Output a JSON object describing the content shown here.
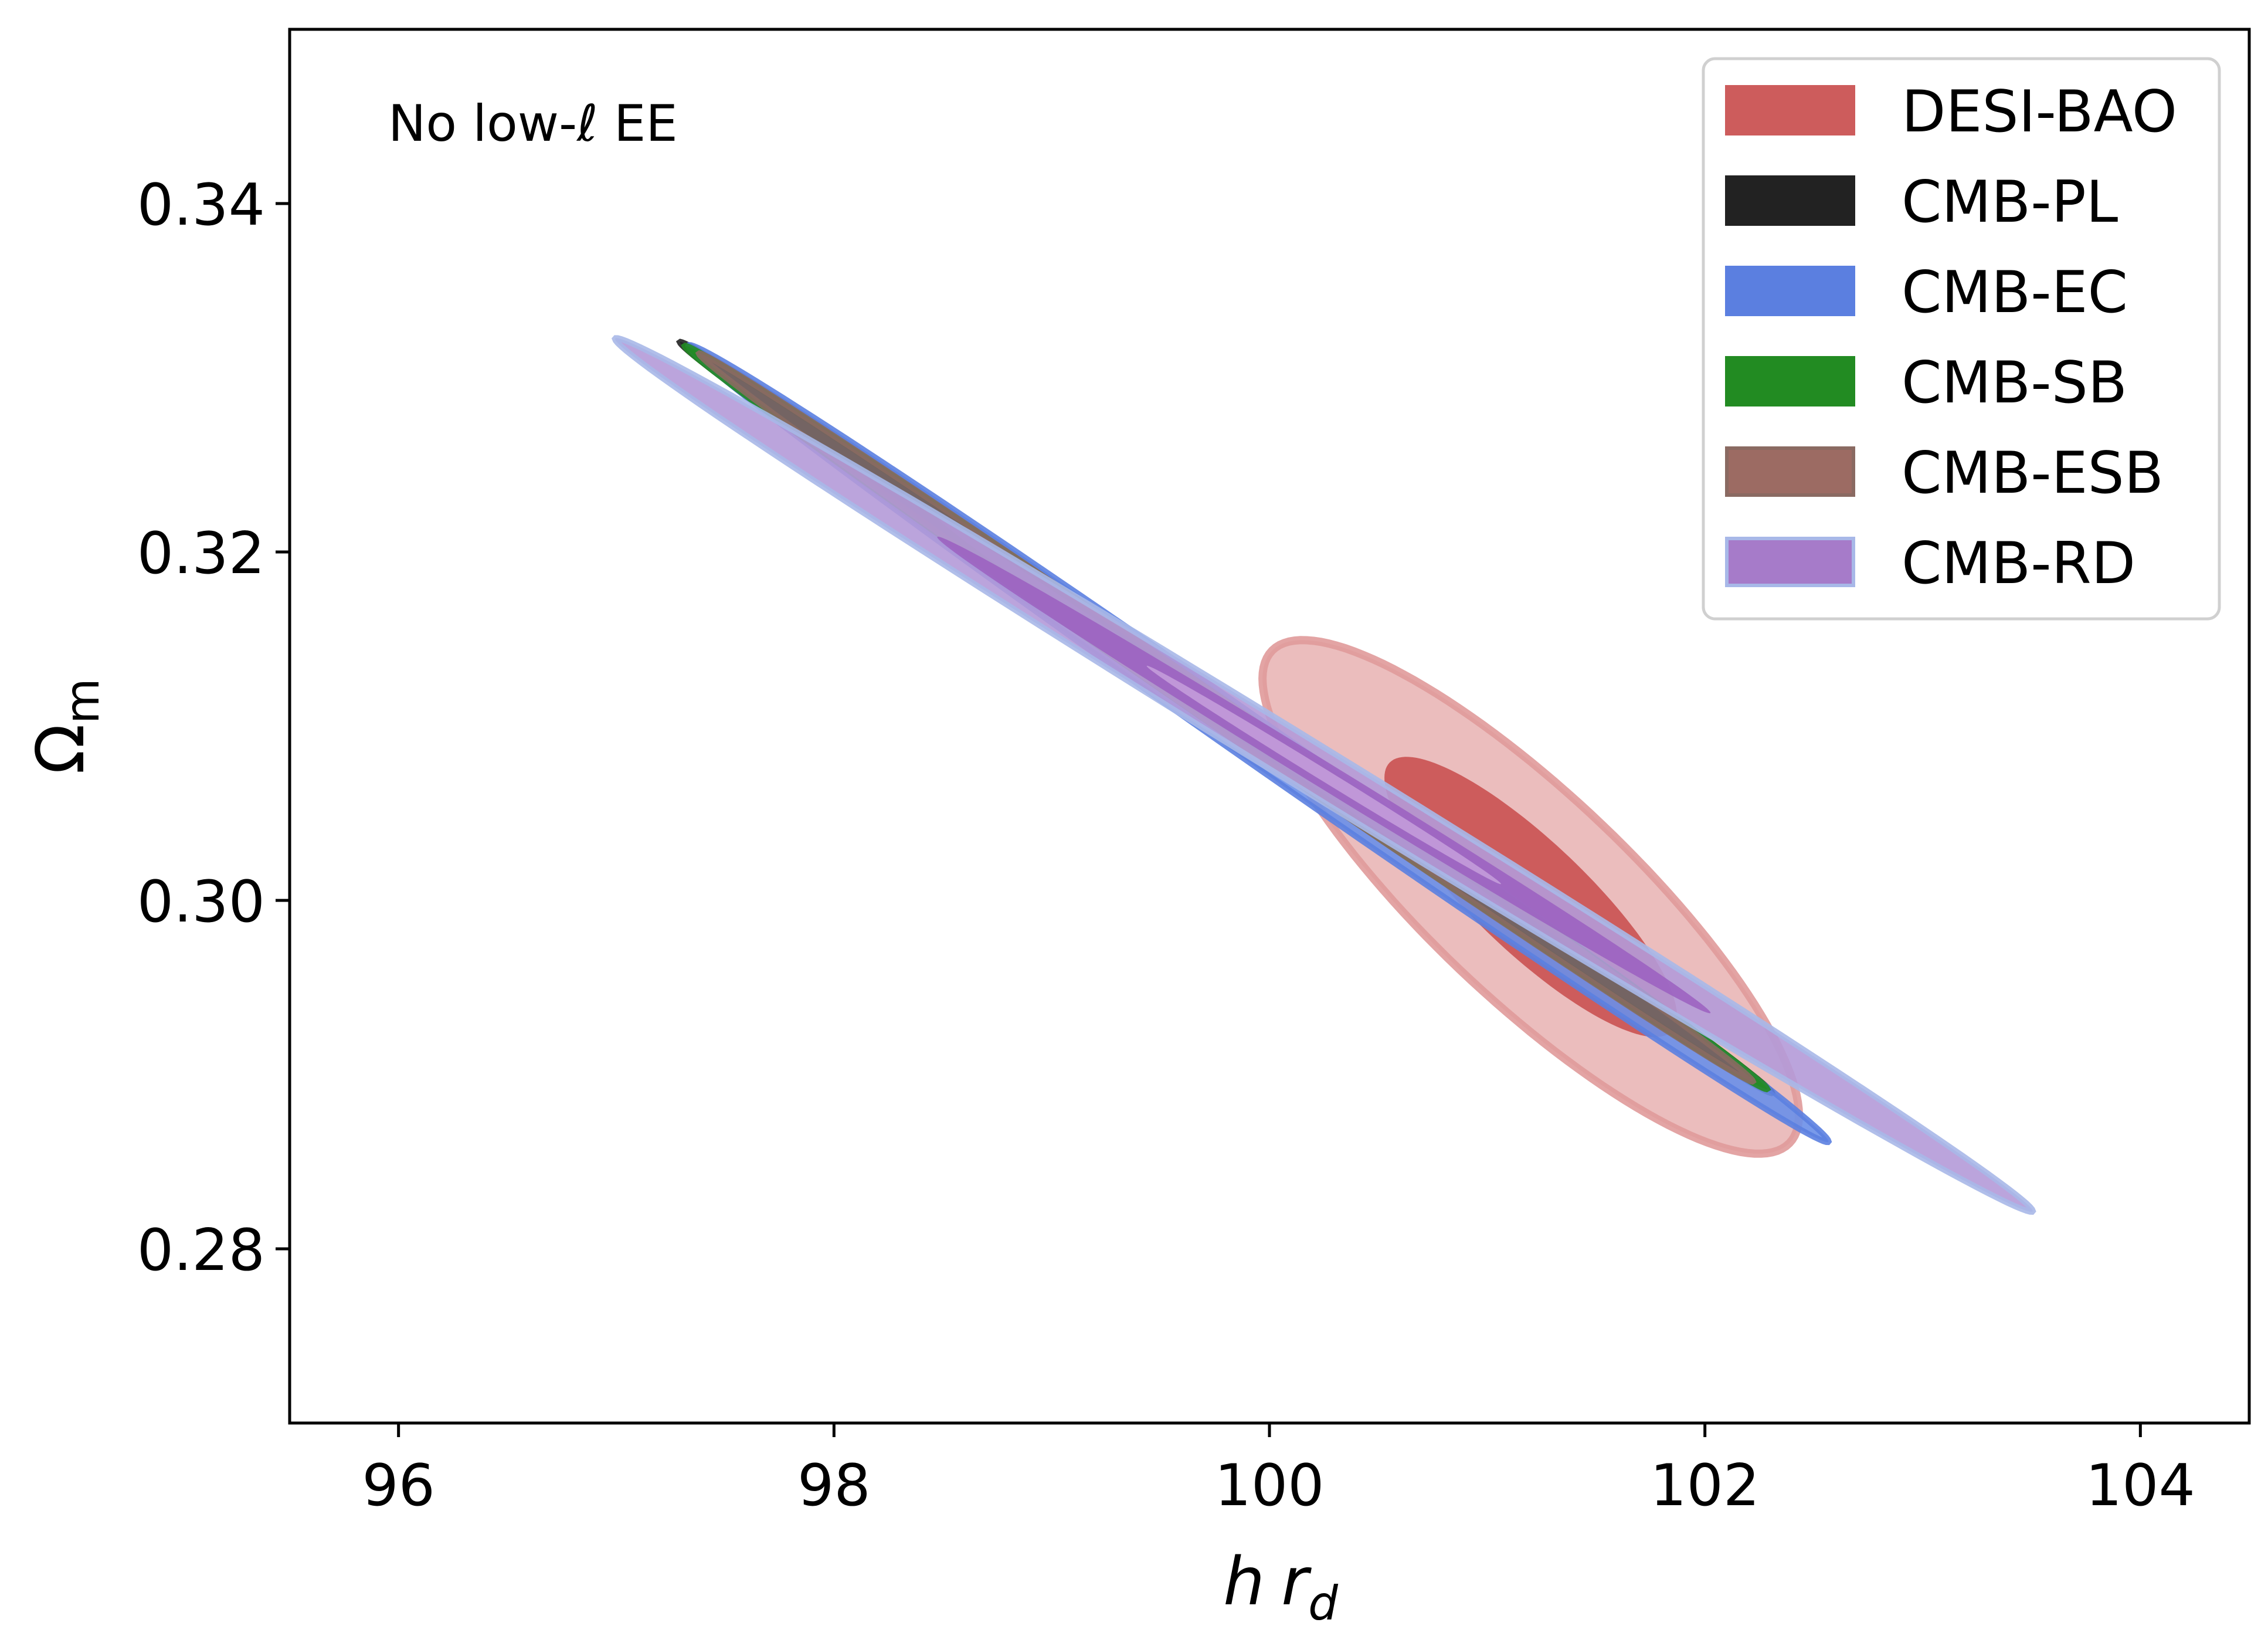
{
  "chart_data": {
    "type": "contour",
    "title": "",
    "annotation": "No low-ℓ EE",
    "xlabel": {
      "italic_h": "h",
      "italic_r": "r",
      "subscript": "d"
    },
    "ylabel": {
      "main": "Ω",
      "subscript": "m"
    },
    "xlim": [
      95.5,
      104.5
    ],
    "ylim": [
      0.27,
      0.35
    ],
    "x_ticks": [
      96,
      98,
      100,
      102,
      104
    ],
    "x_tick_labels": [
      "96",
      "98",
      "100",
      "102",
      "104"
    ],
    "y_ticks": [
      0.28,
      0.3,
      0.32,
      0.34
    ],
    "y_tick_labels": [
      "0.28",
      "0.30",
      "0.32",
      "0.34"
    ],
    "grid": false,
    "legend_position": "top-right",
    "series": [
      {
        "name": "DESI-BAO",
        "color": "#cd5c5c",
        "center": [
          101.2,
          0.3002
        ],
        "sigma_x": 0.56,
        "sigma_y": 0.0067,
        "rho": -0.85,
        "levels": [
          1,
          2
        ],
        "outer_fill": "#ebbdbd",
        "outer_edge": "#e09a9a",
        "inner_fill": "#cd5c5c"
      },
      {
        "name": "CMB-PL",
        "color": "#222222",
        "center": [
          99.8,
          0.3105
        ],
        "sigma_x": 1.14,
        "sigma_y": 0.0098,
        "rho": -0.999,
        "levels": [
          1,
          2
        ],
        "outer_fill": "#444444",
        "outer_edge": "#222222",
        "inner_fill": "#555555"
      },
      {
        "name": "CMB-EC",
        "color": "#5b7fe0",
        "center": [
          99.95,
          0.309
        ],
        "sigma_x": 1.19,
        "sigma_y": 0.0104,
        "rho": -0.998,
        "levels": [
          1,
          2
        ],
        "outer_fill": "#6a8fe8",
        "outer_edge": "#5b7fe0",
        "inner_fill": "#8aa6ee"
      },
      {
        "name": "CMB-SB",
        "color": "#228b22",
        "center": [
          99.8,
          0.3105
        ],
        "sigma_x": 1.13,
        "sigma_y": 0.0097,
        "rho": -0.999,
        "levels": [
          1,
          2
        ],
        "outer_fill": "#2e8b3e",
        "outer_edge": "#228b22",
        "inner_fill": "#3d9a4d"
      },
      {
        "name": "CMB-ESB",
        "color": "#9c6b63",
        "center": [
          99.8,
          0.3105
        ],
        "sigma_x": 1.1,
        "sigma_y": 0.0095,
        "rho": -0.999,
        "levels": [
          1,
          2
        ],
        "outer_fill": "#7b5f66",
        "outer_edge": "#8a6a62",
        "inner_fill": "#8c6a8a"
      },
      {
        "name": "CMB-RD",
        "color": "#a67bc9",
        "center": [
          100.25,
          0.3072
        ],
        "sigma_x": 1.48,
        "sigma_y": 0.0114,
        "rho": -0.998,
        "levels": [
          1,
          2
        ],
        "outer_fill": "#b49ad8",
        "outer_edge": "#a8b8e8",
        "inner_fill": "#9b5fc0",
        "core_fill": "#d7b8e6"
      }
    ]
  }
}
